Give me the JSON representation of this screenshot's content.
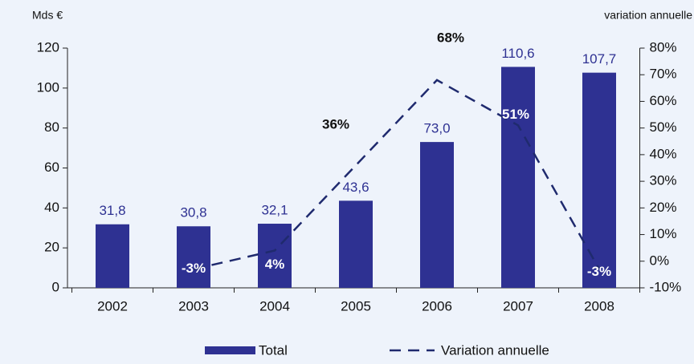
{
  "chart_data": {
    "type": "bar_line",
    "ylabel": "Mds €",
    "y2label": "variation annuelle",
    "categories": [
      "2002",
      "2003",
      "2004",
      "2005",
      "2006",
      "2007",
      "2008"
    ],
    "series": [
      {
        "name": "Total",
        "type": "bar",
        "color": "#2e3192",
        "values": [
          31.8,
          30.8,
          32.1,
          43.6,
          73.0,
          110.6,
          107.7
        ],
        "value_labels": [
          "31,8",
          "30,8",
          "32,1",
          "43,6",
          "73,0",
          "110,6",
          "107,7"
        ]
      },
      {
        "name": "Variation annuelle",
        "type": "line",
        "axis": "y2",
        "color": "#1f2a6e",
        "dashed": true,
        "values": [
          null,
          -3,
          4,
          36,
          68,
          51,
          -3
        ],
        "value_labels": [
          null,
          "-3%",
          "4%",
          "36%",
          "68%",
          "51%",
          "-3%"
        ]
      }
    ],
    "ylim": [
      0,
      120
    ],
    "yticks": [
      0,
      20,
      40,
      60,
      80,
      100,
      120
    ],
    "y2lim": [
      -10,
      80
    ],
    "y2ticks": [
      {
        "value": -10,
        "label": "-10%"
      },
      {
        "value": 0,
        "label": "0%"
      },
      {
        "value": 10,
        "label": "10%"
      },
      {
        "value": 20,
        "label": "20%"
      },
      {
        "value": 30,
        "label": "30%"
      },
      {
        "value": 40,
        "label": "40%"
      },
      {
        "value": 50,
        "label": "50%"
      },
      {
        "value": 60,
        "label": "60%"
      },
      {
        "value": 70,
        "label": "70%"
      },
      {
        "value": 80,
        "label": "80%"
      }
    ],
    "legend": "bottom"
  }
}
